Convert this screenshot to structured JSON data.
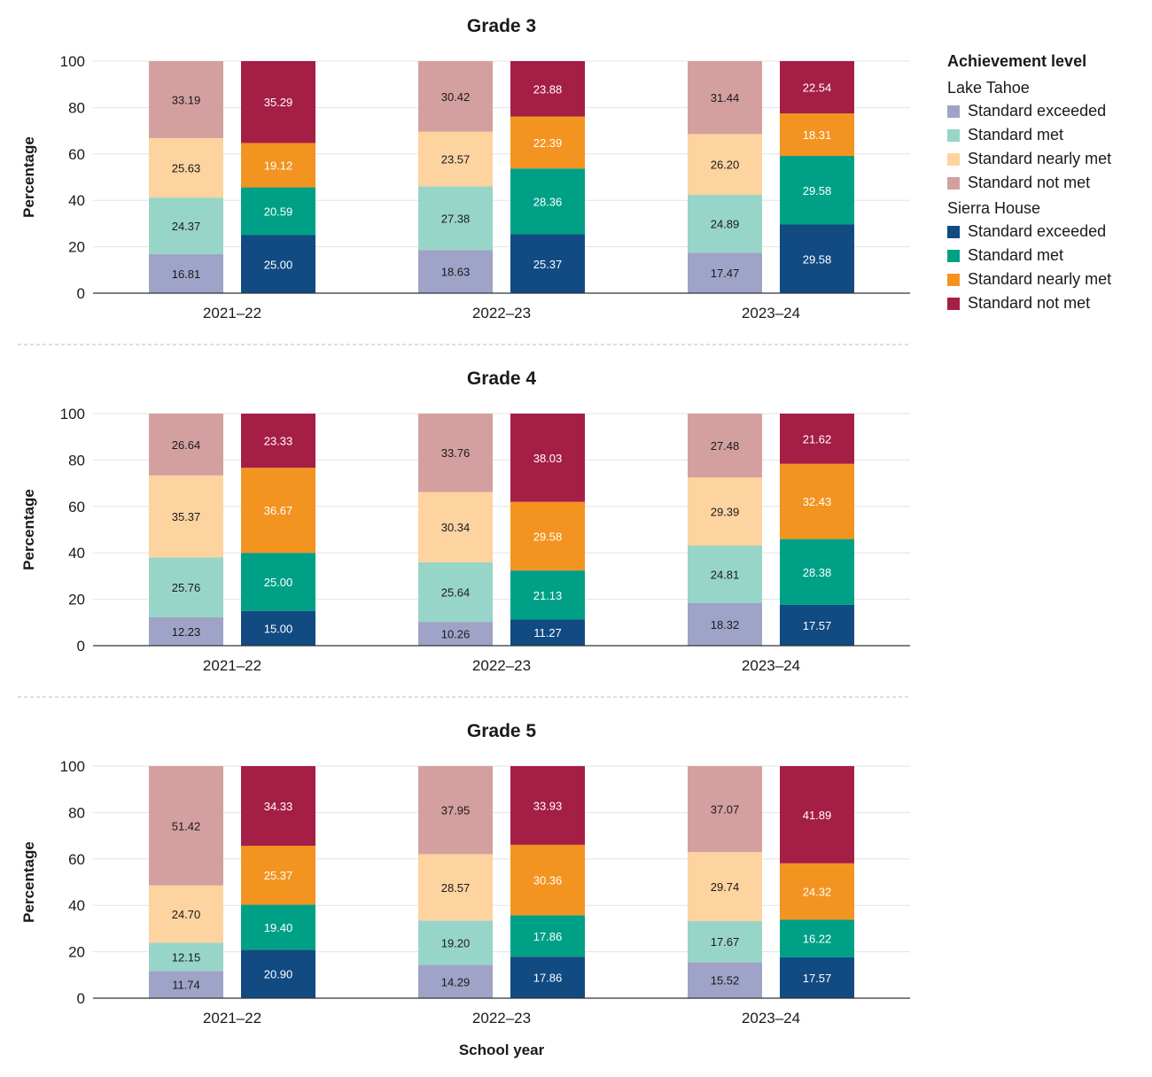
{
  "chart_data": {
    "type": "bar",
    "stacked": true,
    "x_title": "School year",
    "y_title": "Percentage",
    "ylim": [
      0,
      100
    ],
    "yticks": [
      0,
      20,
      40,
      60,
      80,
      100
    ],
    "grid": true,
    "legend_position": "right",
    "categories": [
      "2021–22",
      "2022–23",
      "2023–24"
    ],
    "legend": {
      "title": "Achievement level",
      "groups": [
        {
          "name": "Lake Tahoe",
          "items": [
            {
              "label": "Standard exceeded",
              "color": "#9fa3c7"
            },
            {
              "label": "Standard met",
              "color": "#98d5c9"
            },
            {
              "label": "Standard nearly met",
              "color": "#fdd3a0"
            },
            {
              "label": "Standard not met",
              "color": "#d4a09f"
            }
          ]
        },
        {
          "name": "Sierra House",
          "items": [
            {
              "label": "Standard exceeded",
              "color": "#124a82"
            },
            {
              "label": "Standard met",
              "color": "#00a087"
            },
            {
              "label": "Standard nearly met",
              "color": "#f39420"
            },
            {
              "label": "Standard not met",
              "color": "#a51e45"
            }
          ]
        }
      ]
    },
    "panels": [
      {
        "title": "Grade 3",
        "schools": [
          {
            "name": "Lake Tahoe",
            "values": [
              [
                16.81,
                24.37,
                25.63,
                33.19
              ],
              [
                18.63,
                27.38,
                23.57,
                30.42
              ],
              [
                17.47,
                24.89,
                26.2,
                31.44
              ]
            ]
          },
          {
            "name": "Sierra House",
            "values": [
              [
                25.0,
                20.59,
                19.12,
                35.29
              ],
              [
                25.37,
                28.36,
                22.39,
                23.88
              ],
              [
                29.58,
                29.58,
                18.31,
                22.54
              ]
            ]
          }
        ]
      },
      {
        "title": "Grade 4",
        "schools": [
          {
            "name": "Lake Tahoe",
            "values": [
              [
                12.23,
                25.76,
                35.37,
                26.64
              ],
              [
                10.26,
                25.64,
                30.34,
                33.76
              ],
              [
                18.32,
                24.81,
                29.39,
                27.48
              ]
            ]
          },
          {
            "name": "Sierra House",
            "values": [
              [
                15.0,
                25.0,
                36.67,
                23.33
              ],
              [
                11.27,
                21.13,
                29.58,
                38.03
              ],
              [
                17.57,
                28.38,
                32.43,
                21.62
              ]
            ]
          }
        ]
      },
      {
        "title": "Grade 5",
        "schools": [
          {
            "name": "Lake Tahoe",
            "values": [
              [
                11.74,
                12.15,
                24.7,
                51.42
              ],
              [
                14.29,
                19.2,
                28.57,
                37.95
              ],
              [
                15.52,
                17.67,
                29.74,
                37.07
              ]
            ]
          },
          {
            "name": "Sierra House",
            "values": [
              [
                20.9,
                19.4,
                25.37,
                34.33
              ],
              [
                17.86,
                17.86,
                30.36,
                33.93
              ],
              [
                17.57,
                16.22,
                24.32,
                41.89
              ]
            ]
          }
        ]
      }
    ]
  }
}
